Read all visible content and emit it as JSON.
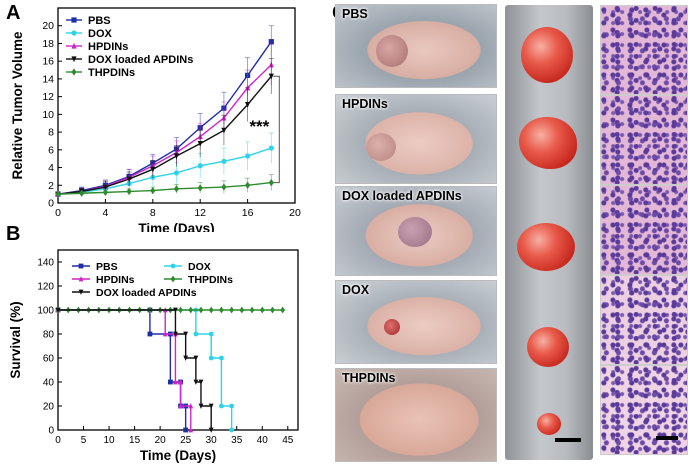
{
  "panels": {
    "a": "A",
    "b": "B",
    "c": "C"
  },
  "chart_data": [
    {
      "type": "line",
      "xlabel": "Time (Days)",
      "ylabel": "Relative Tumor Volume",
      "xlim": [
        0,
        20
      ],
      "ylim": [
        0,
        22
      ],
      "xticks": [
        0,
        4,
        8,
        12,
        16,
        20
      ],
      "yticks": [
        0,
        2,
        4,
        6,
        8,
        10,
        12,
        14,
        16,
        18,
        20
      ],
      "annotation": "***",
      "legend_position": "top-left",
      "x": [
        0,
        2,
        4,
        6,
        8,
        10,
        12,
        14,
        16,
        18
      ],
      "series": [
        {
          "name": "PBS",
          "color": "#1f2fa8",
          "marker": "square",
          "values": [
            1,
            1.4,
            2.0,
            3.0,
            4.5,
            6.1,
            8.5,
            10.7,
            14.4,
            18.2
          ],
          "errors": [
            0.2,
            0.4,
            0.6,
            0.8,
            1.0,
            1.3,
            1.6,
            1.8,
            2.0,
            1.8
          ]
        },
        {
          "name": "DOX",
          "color": "#2ed3e6",
          "marker": "circle",
          "values": [
            1,
            1.2,
            1.6,
            2.2,
            2.9,
            3.4,
            4.2,
            4.7,
            5.3,
            6.2
          ],
          "errors": [
            0.2,
            0.3,
            0.5,
            0.7,
            1.0,
            1.2,
            1.4,
            1.5,
            1.6,
            1.7
          ]
        },
        {
          "name": "HPDINs",
          "color": "#d024c8",
          "marker": "triangle",
          "values": [
            1,
            1.3,
            1.9,
            2.9,
            4.2,
            5.7,
            7.5,
            9.6,
            13.0,
            15.6
          ],
          "errors": [
            0.2,
            0.4,
            0.6,
            0.9,
            1.1,
            1.3,
            1.5,
            1.8,
            2.0,
            2.3
          ]
        },
        {
          "name": "DOX loaded APDINs",
          "color": "#111111",
          "marker": "triangle-down",
          "values": [
            1,
            1.3,
            1.8,
            2.7,
            3.8,
            5.3,
            6.7,
            8.2,
            11.1,
            14.3
          ],
          "errors": [
            0.2,
            0.4,
            0.6,
            0.8,
            1.0,
            1.2,
            1.5,
            1.7,
            1.9,
            2.0
          ]
        },
        {
          "name": "THPDINs",
          "color": "#2e8b2e",
          "marker": "diamond",
          "values": [
            1,
            1.1,
            1.2,
            1.3,
            1.4,
            1.6,
            1.7,
            1.8,
            2.0,
            2.3
          ],
          "errors": [
            0.1,
            0.2,
            0.3,
            0.3,
            0.4,
            0.5,
            0.6,
            0.7,
            0.8,
            0.9
          ]
        }
      ]
    },
    {
      "type": "line",
      "step": true,
      "xlabel": "Time (Days)",
      "ylabel": "Survival (%)",
      "xlim": [
        0,
        47
      ],
      "ylim": [
        0,
        150
      ],
      "xticks": [
        0,
        5,
        10,
        15,
        20,
        25,
        30,
        35,
        40,
        45
      ],
      "yticks": [
        0,
        20,
        40,
        60,
        80,
        100,
        120,
        140
      ],
      "legend_position": "top",
      "series": [
        {
          "name": "PBS",
          "color": "#1f2fa8",
          "marker": "square",
          "x": [
            0,
            18,
            18,
            22,
            22,
            24,
            24,
            25,
            25
          ],
          "values": [
            100,
            100,
            80,
            80,
            40,
            40,
            20,
            20,
            0
          ]
        },
        {
          "name": "DOX",
          "color": "#2ed3e6",
          "marker": "circle",
          "x": [
            0,
            27,
            27,
            30,
            30,
            32,
            32,
            34,
            34
          ],
          "values": [
            100,
            100,
            80,
            80,
            60,
            60,
            20,
            20,
            0
          ]
        },
        {
          "name": "HPDINs",
          "color": "#d024c8",
          "marker": "triangle",
          "x": [
            0,
            21,
            21,
            23,
            23,
            24,
            24,
            26,
            26
          ],
          "values": [
            100,
            100,
            80,
            80,
            40,
            40,
            20,
            20,
            0
          ]
        },
        {
          "name": "THPDINs",
          "color": "#2e8b2e",
          "marker": "diamond",
          "x": [
            0,
            2,
            4,
            6,
            8,
            10,
            12,
            14,
            16,
            18,
            20,
            22,
            24,
            26,
            28,
            30,
            32,
            34,
            36,
            38,
            40,
            42,
            44
          ],
          "values": [
            100,
            100,
            100,
            100,
            100,
            100,
            100,
            100,
            100,
            100,
            100,
            100,
            100,
            100,
            100,
            100,
            100,
            100,
            100,
            100,
            100,
            100,
            100
          ]
        },
        {
          "name": "DOX loaded APDINs",
          "color": "#111111",
          "marker": "triangle-down",
          "x": [
            0,
            23,
            23,
            25,
            25,
            27,
            27,
            28,
            28,
            30,
            30
          ],
          "values": [
            100,
            100,
            80,
            80,
            60,
            60,
            40,
            40,
            20,
            20,
            0
          ]
        }
      ]
    }
  ],
  "photos": {
    "mice": [
      {
        "label": "PBS"
      },
      {
        "label": "HPDINs"
      },
      {
        "label": "DOX loaded APDINs"
      },
      {
        "label": "DOX"
      },
      {
        "label": "THPDINs"
      }
    ]
  }
}
